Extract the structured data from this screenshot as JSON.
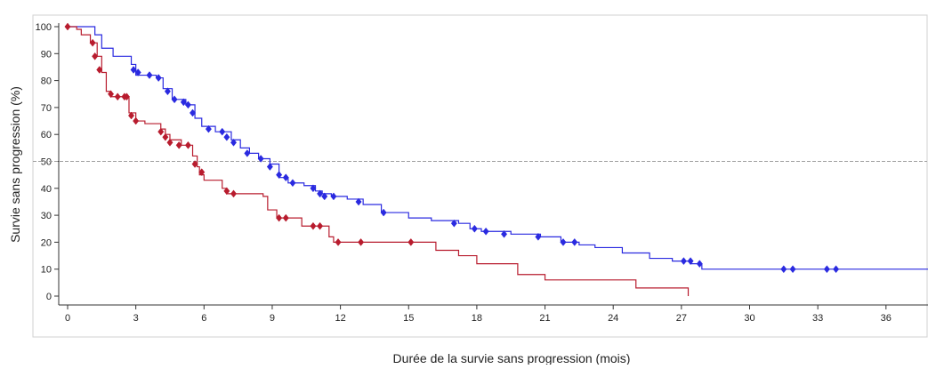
{
  "chart_data": {
    "type": "line",
    "subtype": "kaplan-meier-step",
    "title": "",
    "xlabel": "Durée de la survie sans progression (mois)",
    "ylabel": "Survie sans progression (%)",
    "xlim": [
      0,
      38
    ],
    "ylim": [
      0,
      100
    ],
    "x_ticks": [
      0,
      3,
      6,
      9,
      12,
      15,
      18,
      21,
      24,
      27,
      30,
      33,
      36
    ],
    "y_ticks": [
      0,
      10,
      20,
      30,
      40,
      50,
      60,
      70,
      80,
      90,
      100
    ],
    "reference_line": {
      "y": 50,
      "style": "dashed",
      "color": "#9e9e9e"
    },
    "grid": false,
    "legend": "none",
    "series": [
      {
        "color": "#2a2ae0",
        "marker": "diamond",
        "steps": [
          [
            0,
            100
          ],
          [
            0.8,
            100
          ],
          [
            1.2,
            97
          ],
          [
            1.5,
            92
          ],
          [
            2.0,
            89
          ],
          [
            2.8,
            86
          ],
          [
            3.0,
            82
          ],
          [
            3.9,
            81
          ],
          [
            4.2,
            77
          ],
          [
            4.6,
            73
          ],
          [
            5.2,
            71
          ],
          [
            5.6,
            66
          ],
          [
            5.9,
            63
          ],
          [
            6.5,
            61
          ],
          [
            7.2,
            58
          ],
          [
            7.6,
            55
          ],
          [
            8.0,
            53
          ],
          [
            8.4,
            51
          ],
          [
            8.9,
            49
          ],
          [
            9.3,
            44
          ],
          [
            9.7,
            42
          ],
          [
            10.4,
            41
          ],
          [
            10.9,
            39
          ],
          [
            11.2,
            38
          ],
          [
            11.6,
            37
          ],
          [
            12.3,
            36
          ],
          [
            13.0,
            34
          ],
          [
            13.8,
            31
          ],
          [
            15.0,
            29
          ],
          [
            16.0,
            28
          ],
          [
            17.2,
            27
          ],
          [
            17.7,
            25
          ],
          [
            18.2,
            24
          ],
          [
            19.5,
            23
          ],
          [
            20.8,
            22
          ],
          [
            21.7,
            20
          ],
          [
            22.5,
            19
          ],
          [
            23.2,
            18
          ],
          [
            24.4,
            16
          ],
          [
            25.6,
            14
          ],
          [
            26.6,
            13
          ],
          [
            27.4,
            12
          ],
          [
            27.9,
            10
          ],
          [
            38,
            10
          ],
          [
            38,
            0
          ]
        ],
        "censored": [
          [
            2.9,
            84
          ],
          [
            3.1,
            83
          ],
          [
            3.6,
            82
          ],
          [
            4.0,
            81
          ],
          [
            4.4,
            76
          ],
          [
            4.7,
            73
          ],
          [
            5.1,
            72
          ],
          [
            5.3,
            71
          ],
          [
            5.5,
            68
          ],
          [
            6.2,
            62
          ],
          [
            6.8,
            61
          ],
          [
            7.0,
            59
          ],
          [
            7.3,
            57
          ],
          [
            7.9,
            53
          ],
          [
            8.5,
            51
          ],
          [
            8.9,
            48
          ],
          [
            9.3,
            45
          ],
          [
            9.6,
            44
          ],
          [
            9.9,
            42
          ],
          [
            10.8,
            40
          ],
          [
            11.1,
            38
          ],
          [
            11.3,
            37
          ],
          [
            11.7,
            37
          ],
          [
            12.8,
            35
          ],
          [
            13.9,
            31
          ],
          [
            17.0,
            27
          ],
          [
            17.9,
            25
          ],
          [
            18.4,
            24
          ],
          [
            19.2,
            23
          ],
          [
            20.7,
            22
          ],
          [
            21.8,
            20
          ],
          [
            22.3,
            20
          ],
          [
            27.1,
            13
          ],
          [
            27.4,
            13
          ],
          [
            27.8,
            12
          ],
          [
            31.5,
            10
          ],
          [
            31.9,
            10
          ],
          [
            33.4,
            10
          ],
          [
            33.8,
            10
          ]
        ]
      },
      {
        "color": "#b81c2e",
        "marker": "diamond",
        "steps": [
          [
            0,
            100
          ],
          [
            0.4,
            99
          ],
          [
            0.6,
            97
          ],
          [
            1.0,
            94
          ],
          [
            1.3,
            89
          ],
          [
            1.5,
            83
          ],
          [
            1.7,
            76
          ],
          [
            1.9,
            74
          ],
          [
            2.7,
            68
          ],
          [
            3.0,
            65
          ],
          [
            3.4,
            64
          ],
          [
            4.1,
            62
          ],
          [
            4.3,
            60
          ],
          [
            4.5,
            58
          ],
          [
            5.0,
            56
          ],
          [
            5.5,
            52
          ],
          [
            5.7,
            48
          ],
          [
            5.8,
            45
          ],
          [
            6.0,
            43
          ],
          [
            6.8,
            40
          ],
          [
            7.0,
            38
          ],
          [
            7.3,
            38
          ],
          [
            8.6,
            37
          ],
          [
            8.8,
            32
          ],
          [
            9.2,
            29
          ],
          [
            10.3,
            26
          ],
          [
            11.5,
            22
          ],
          [
            11.7,
            20
          ],
          [
            15.0,
            20
          ],
          [
            16.2,
            17
          ],
          [
            17.2,
            15
          ],
          [
            18.0,
            12
          ],
          [
            19.8,
            8
          ],
          [
            21.0,
            6
          ],
          [
            25.0,
            3
          ],
          [
            27.3,
            3
          ],
          [
            27.3,
            0
          ]
        ],
        "censored": [
          [
            0,
            100
          ],
          [
            1.1,
            94
          ],
          [
            1.2,
            89
          ],
          [
            1.4,
            84
          ],
          [
            1.9,
            75
          ],
          [
            2.2,
            74
          ],
          [
            2.5,
            74
          ],
          [
            2.6,
            74
          ],
          [
            2.8,
            67
          ],
          [
            3.0,
            65
          ],
          [
            4.1,
            61
          ],
          [
            4.3,
            59
          ],
          [
            4.5,
            57
          ],
          [
            4.9,
            56
          ],
          [
            5.3,
            56
          ],
          [
            5.6,
            49
          ],
          [
            5.9,
            46
          ],
          [
            7.0,
            39
          ],
          [
            7.3,
            38
          ],
          [
            9.3,
            29
          ],
          [
            9.6,
            29
          ],
          [
            10.8,
            26
          ],
          [
            11.1,
            26
          ],
          [
            11.9,
            20
          ],
          [
            12.9,
            20
          ],
          [
            15.1,
            20
          ]
        ]
      }
    ]
  }
}
